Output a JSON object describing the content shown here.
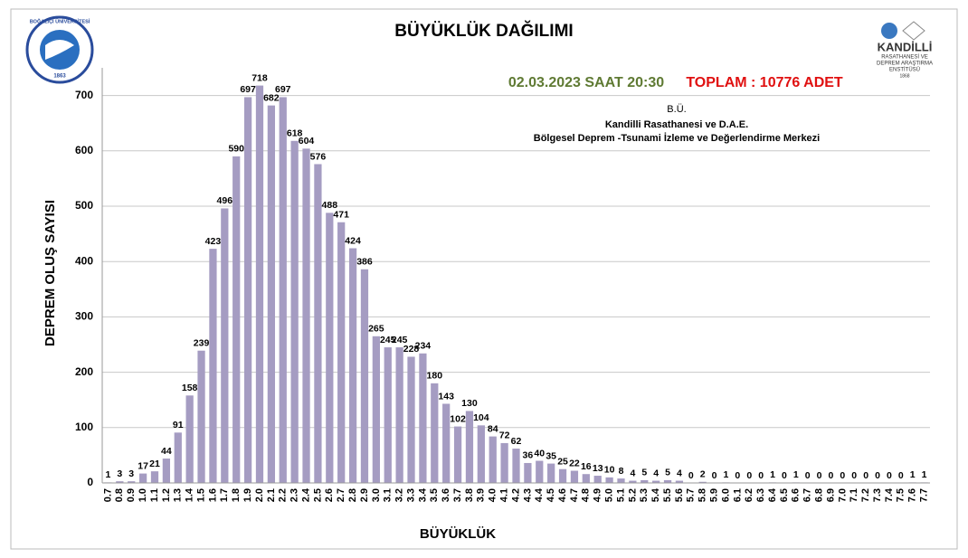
{
  "chart_data": {
    "type": "bar",
    "title": "BÜYÜKLÜK DAĞILIMI",
    "date_text": "02.03.2023 SAAT 20:30",
    "total_text": "TOPLAM : 10776 ADET",
    "source_lines": [
      "B.Ü.",
      "Kandilli Rasathanesi ve D.A.E.",
      "Bölgesel Deprem -Tsunami İzleme ve Değerlendirme Merkezi"
    ],
    "logos": {
      "left": [
        "BOĞAZİÇİ ÜNİVERSİTESİ",
        "1863"
      ],
      "right": [
        "KANDİLLİ",
        "RASATHANESİ VE",
        "DEPREM ARAŞTIRMA",
        "ENSTİTÜSÜ",
        "1868"
      ]
    },
    "x_label": "BÜYÜKLÜK",
    "y_label": "DEPREM OLUŞ SAYISI",
    "categories": [
      "0.7",
      "0.8",
      "0.9",
      "1.0",
      "1.1",
      "1.2",
      "1.3",
      "1.4",
      "1.5",
      "1.6",
      "1.7",
      "1.8",
      "1.9",
      "2.0",
      "2.1",
      "2.2",
      "2.3",
      "2.4",
      "2.5",
      "2.6",
      "2.7",
      "2.8",
      "2.9",
      "3.0",
      "3.1",
      "3.2",
      "3.3",
      "3.4",
      "3.5",
      "3.6",
      "3.7",
      "3.8",
      "3.9",
      "4.0",
      "4.1",
      "4.2",
      "4.3",
      "4.4",
      "4.5",
      "4.6",
      "4.7",
      "4.8",
      "4.9",
      "5.0",
      "5.1",
      "5.2",
      "5.3",
      "5.4",
      "5.5",
      "5.6",
      "5.7",
      "5.8",
      "5.9",
      "6.0",
      "6.1",
      "6.2",
      "6.3",
      "6.4",
      "6.5",
      "6.6",
      "6.7",
      "6.8",
      "6.9",
      "7.0",
      "7.1",
      "7.2",
      "7.3",
      "7.4",
      "7.5",
      "7.6",
      "7.7"
    ],
    "values": [
      1,
      3,
      3,
      17,
      21,
      44,
      91,
      158,
      239,
      423,
      496,
      590,
      697,
      718,
      682,
      697,
      618,
      604,
      576,
      488,
      471,
      424,
      386,
      265,
      245,
      245,
      228,
      234,
      180,
      143,
      102,
      130,
      104,
      84,
      72,
      62,
      36,
      40,
      35,
      25,
      22,
      16,
      13,
      10,
      8,
      4,
      5,
      4,
      5,
      4,
      0,
      2,
      0,
      1,
      0,
      0,
      0,
      1,
      0,
      1,
      0,
      0,
      0,
      0,
      0,
      0,
      0,
      0,
      0,
      1,
      1
    ],
    "color": "#a59cc2",
    "ylim": [
      0,
      750
    ],
    "yticks": [
      0,
      100,
      200,
      300,
      400,
      500,
      600,
      700
    ],
    "grid": true
  }
}
